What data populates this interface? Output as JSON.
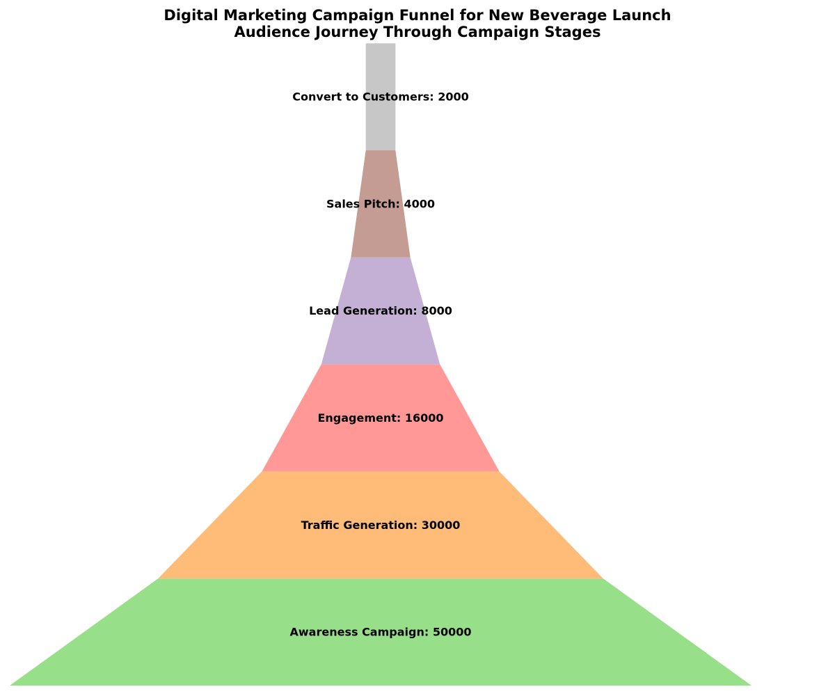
{
  "chart_data": {
    "type": "funnel",
    "title": "Digital Marketing Campaign Funnel for New Beverage Launch",
    "subtitle": "Audience Journey Through Campaign Stages",
    "stages": [
      {
        "name": "Awareness Campaign",
        "value": 50000,
        "color": "#98df8a"
      },
      {
        "name": "Traffic Generation",
        "value": 30000,
        "color": "#ffbb78"
      },
      {
        "name": "Engagement",
        "value": 16000,
        "color": "#ff9896"
      },
      {
        "name": "Lead Generation",
        "value": 8000,
        "color": "#c5b0d5"
      },
      {
        "name": "Sales Pitch",
        "value": 4000,
        "color": "#c49c94"
      },
      {
        "name": "Convert to Customers",
        "value": 2000,
        "color": "#c7c7c7"
      }
    ]
  }
}
